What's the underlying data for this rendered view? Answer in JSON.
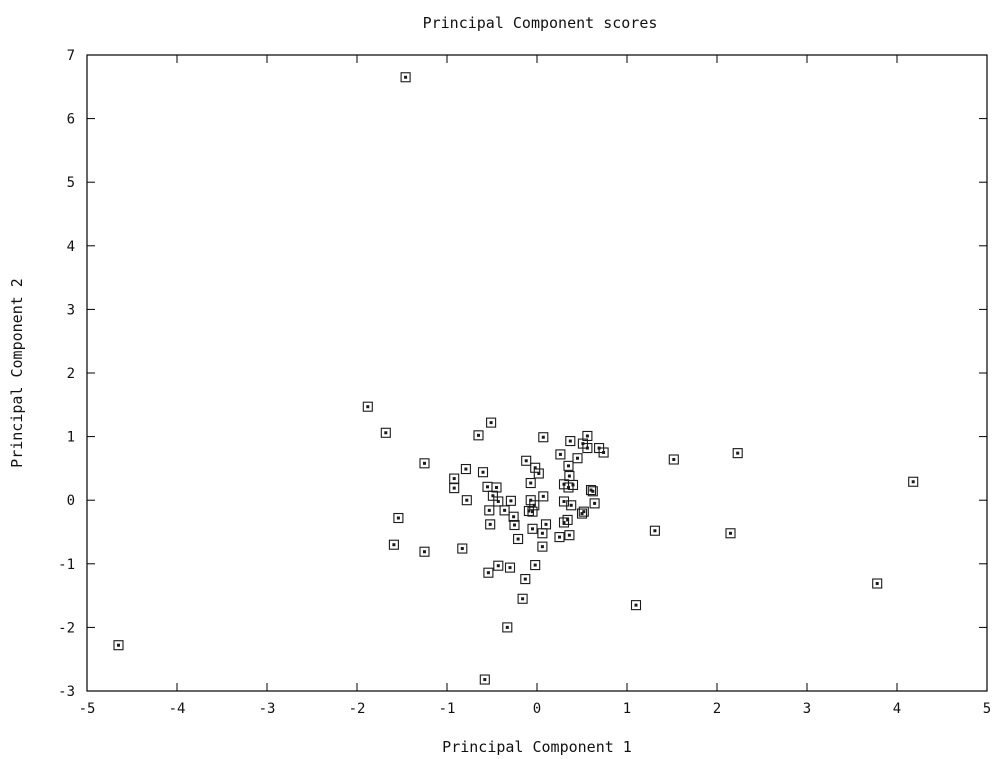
{
  "chart_data": {
    "type": "scatter",
    "title": "Principal Component scores",
    "xlabel": "Principal Component 1",
    "ylabel": "Principal Component 2",
    "xlim": [
      -5,
      5
    ],
    "ylim": [
      -3,
      7
    ],
    "xticks": [
      "-5",
      "-4",
      "-3",
      "-2",
      "-1",
      "0",
      "1",
      "2",
      "3",
      "4",
      "5"
    ],
    "yticks": [
      "-3",
      "-2",
      "-1",
      "0",
      "1",
      "2",
      "3",
      "4",
      "5",
      "6",
      "7"
    ],
    "grid": false,
    "legend": "none",
    "marker": "square-with-dot",
    "series": [
      {
        "points": [
          [
            -1.46,
            6.65
          ],
          [
            -4.65,
            -2.28
          ],
          [
            -0.58,
            -2.82
          ],
          [
            -0.33,
            -2.0
          ],
          [
            -1.88,
            1.47
          ],
          [
            -1.68,
            1.06
          ],
          [
            -1.25,
            0.58
          ],
          [
            -0.92,
            0.34
          ],
          [
            -0.92,
            0.19
          ],
          [
            -0.79,
            0.49
          ],
          [
            -0.78,
            0.0
          ],
          [
            -1.54,
            -0.28
          ],
          [
            -1.59,
            -0.7
          ],
          [
            -1.25,
            -0.81
          ],
          [
            -0.83,
            -0.76
          ],
          [
            -0.65,
            1.02
          ],
          [
            -0.51,
            1.22
          ],
          [
            -0.6,
            0.44
          ],
          [
            -0.55,
            0.21
          ],
          [
            -0.45,
            0.2
          ],
          [
            -0.49,
            0.07
          ],
          [
            -0.43,
            -0.02
          ],
          [
            -0.53,
            -0.16
          ],
          [
            -0.36,
            -0.16
          ],
          [
            -0.29,
            -0.01
          ],
          [
            -0.26,
            -0.26
          ],
          [
            -0.25,
            -0.39
          ],
          [
            -0.52,
            -0.38
          ],
          [
            -0.21,
            -0.61
          ],
          [
            -0.43,
            -1.03
          ],
          [
            -0.54,
            -1.14
          ],
          [
            -0.3,
            -1.06
          ],
          [
            -0.13,
            -1.24
          ],
          [
            -0.16,
            -1.55
          ],
          [
            -0.02,
            -1.02
          ],
          [
            -0.12,
            0.62
          ],
          [
            -0.07,
            0.27
          ],
          [
            -0.07,
            0.0
          ],
          [
            -0.09,
            -0.17
          ],
          [
            -0.02,
            0.51
          ],
          [
            0.02,
            0.42
          ],
          [
            0.07,
            0.06
          ],
          [
            -0.03,
            -0.08
          ],
          [
            -0.05,
            -0.18
          ],
          [
            0.06,
            -0.52
          ],
          [
            0.06,
            -0.73
          ],
          [
            0.1,
            -0.38
          ],
          [
            -0.05,
            -0.45
          ],
          [
            0.07,
            0.99
          ],
          [
            0.26,
            0.72
          ],
          [
            0.3,
            0.25
          ],
          [
            0.35,
            0.2
          ],
          [
            0.4,
            0.24
          ],
          [
            0.35,
            0.54
          ],
          [
            0.36,
            0.38
          ],
          [
            0.37,
            0.93
          ],
          [
            0.45,
            0.66
          ],
          [
            0.51,
            0.89
          ],
          [
            0.56,
            1.01
          ],
          [
            0.56,
            0.82
          ],
          [
            0.3,
            -0.02
          ],
          [
            0.38,
            -0.08
          ],
          [
            0.3,
            -0.35
          ],
          [
            0.25,
            -0.58
          ],
          [
            0.36,
            -0.55
          ],
          [
            0.34,
            -0.31
          ],
          [
            0.52,
            -0.18
          ],
          [
            0.5,
            -0.21
          ],
          [
            0.6,
            0.16
          ],
          [
            0.62,
            0.14
          ],
          [
            0.64,
            -0.05
          ],
          [
            0.69,
            0.82
          ],
          [
            0.74,
            0.75
          ],
          [
            1.31,
            -0.48
          ],
          [
            1.1,
            -1.65
          ],
          [
            1.52,
            0.64
          ],
          [
            2.15,
            -0.52
          ],
          [
            2.23,
            0.74
          ],
          [
            3.78,
            -1.31
          ],
          [
            4.18,
            0.29
          ]
        ]
      }
    ]
  }
}
